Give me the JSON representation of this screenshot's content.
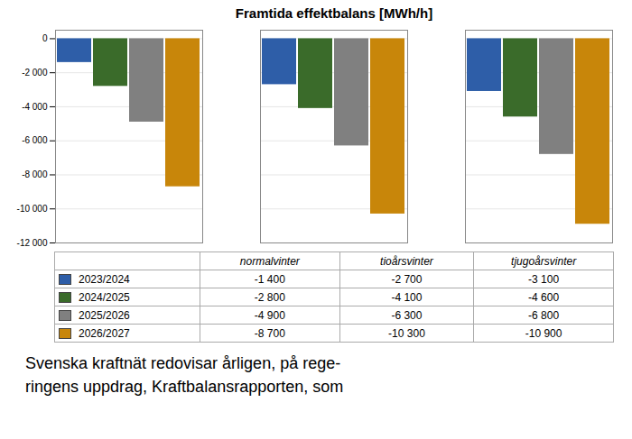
{
  "chart_data": {
    "type": "bar",
    "title": "Framtida effektbalans [MWh/h]",
    "categories": [
      "normalvinter",
      "tioårsvinter",
      "tjugoårsvinter"
    ],
    "series": [
      {
        "name": "2023/2024",
        "color": "#2E5EA8",
        "values": [
          -1400,
          -2700,
          -3100
        ],
        "value_labels": [
          "-1 400",
          "-2 700",
          "-3 100"
        ]
      },
      {
        "name": "2024/2025",
        "color": "#3A6B2A",
        "values": [
          -2800,
          -4100,
          -4600
        ],
        "value_labels": [
          "-2 800",
          "-4 100",
          "-4 600"
        ]
      },
      {
        "name": "2025/2026",
        "color": "#808080",
        "values": [
          -4900,
          -6300,
          -6800
        ],
        "value_labels": [
          "-4 900",
          "-6 300",
          "-6 800"
        ]
      },
      {
        "name": "2026/2027",
        "color": "#C8860A",
        "values": [
          -8700,
          -10300,
          -10900
        ],
        "value_labels": [
          "-8 700",
          "-10 300",
          "-10 900"
        ]
      }
    ],
    "ylim": [
      -12000,
      500
    ],
    "yticks": [
      0,
      {
        "value": -2000,
        "label": "-2 000"
      },
      {
        "value": -4000,
        "label": "-4 000"
      },
      {
        "value": -6000,
        "label": "-6 000"
      },
      {
        "value": -8000,
        "label": "-8 000"
      },
      {
        "value": -10000,
        "label": "-10 000"
      },
      {
        "value": -12000,
        "label": "-12 000"
      }
    ],
    "grid": true,
    "tick_labels": "y",
    "caption": "Svenska kraftnät redovisar årligen, på rege-\nringens uppdrag, Kraftbalansrapporten, som"
  }
}
